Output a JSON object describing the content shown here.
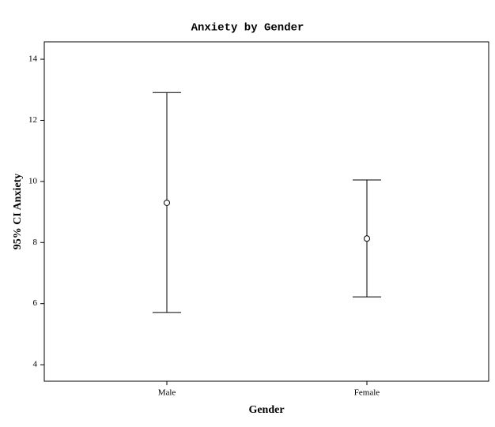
{
  "chart_data": {
    "type": "errorbar",
    "title": "Anxiety by Gender",
    "x_label": "Gender",
    "y_label": "95% CI Anxiety",
    "categories": [
      "Male",
      "Female"
    ],
    "values": [
      9.3,
      8.13
    ],
    "ci_lower": [
      5.71,
      6.22
    ],
    "ci_upper": [
      12.91,
      10.05
    ],
    "color": "#000000",
    "ylim": [
      3.46,
      14.57
    ],
    "yticks": [
      4,
      6,
      8,
      10,
      12,
      14
    ],
    "grid": false
  }
}
